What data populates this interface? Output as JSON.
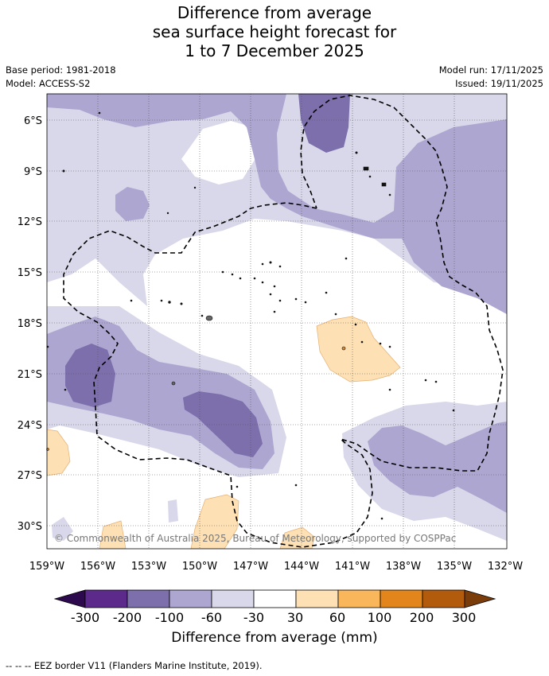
{
  "title": {
    "line1": "Difference from average",
    "line2": "sea surface height forecast for",
    "line3": "1 to 7 December 2025"
  },
  "meta": {
    "base_period": "Base period: 1981-2018",
    "model": "Model: ACCESS-S2",
    "model_run": "Model run: 17/11/2025",
    "issued": "Issued: 19/11/2025"
  },
  "map": {
    "lat_labels": [
      "6°S",
      "9°S",
      "12°S",
      "15°S",
      "18°S",
      "21°S",
      "24°S",
      "27°S",
      "30°S"
    ],
    "lon_labels": [
      "159°W",
      "156°W",
      "153°W",
      "150°W",
      "147°W",
      "144°W",
      "141°W",
      "138°W",
      "135°W",
      "132°W"
    ],
    "copyright": "© Commonwealth of Australia 2025, Bureau of Meteorology, supported by COSPPac"
  },
  "colorbar": {
    "title": "Difference from average (mm)",
    "ticks": [
      "-300",
      "-200",
      "-100",
      "-60",
      "-30",
      "30",
      "60",
      "100",
      "200",
      "300"
    ],
    "colors": [
      "#2d0a4e",
      "#5c2a8a",
      "#7d6eac",
      "#aca6d0",
      "#d8d8ea",
      "#ffffff",
      "#fde0b4",
      "#f9b65a",
      "#e2851a",
      "#b25b0c",
      "#7a3d0a"
    ]
  },
  "footer": {
    "legend": "--  --  -- EEZ border V11 (Flanders Marine Institute, 2019)."
  }
}
